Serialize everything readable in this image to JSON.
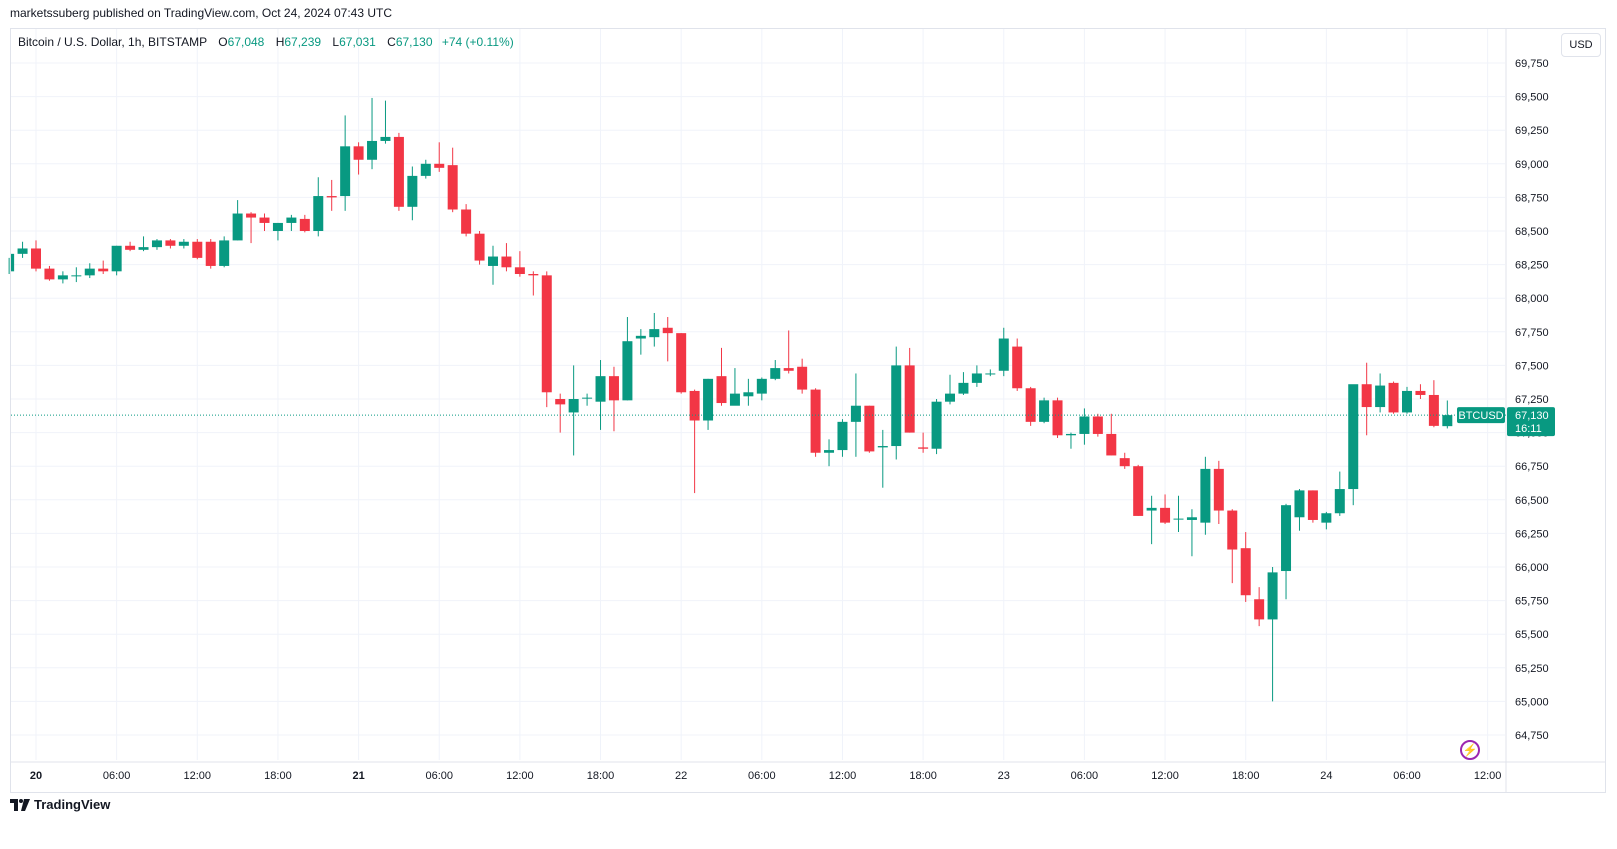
{
  "publisher": "marketssuberg published on TradingView.com, Oct 24, 2024 07:43 UTC",
  "legend": {
    "symbol": "Bitcoin / U.S. Dollar, 1h, BITSTAMP",
    "o_label": "O",
    "o": "67,048",
    "h_label": "H",
    "h": "67,239",
    "l_label": "L",
    "l": "67,031",
    "c_label": "C",
    "c": "67,130",
    "change": "+74 (+0.11%)"
  },
  "currency_button": "USD",
  "price_tag": {
    "symbol": "BTCUSD",
    "price": "67,130",
    "countdown": "16:11"
  },
  "footer_brand": "TradingView",
  "icons": {
    "logo": "tradingview-logo-icon",
    "alert": "lightning-icon"
  },
  "colors": {
    "up": "#089981",
    "down": "#f23645",
    "tag": "#089981"
  },
  "chart_data": {
    "type": "candlestick",
    "title": "Bitcoin / U.S. Dollar, 1h, BITSTAMP",
    "last_price": 67130,
    "ylim": [
      64600,
      69900
    ],
    "y_ticks": [
      "69,750",
      "69,500",
      "69,250",
      "69,000",
      "68,750",
      "68,500",
      "68,250",
      "68,000",
      "67,750",
      "67,500",
      "67,250",
      "67,000",
      "66,750",
      "66,500",
      "66,250",
      "66,000",
      "65,750",
      "65,500",
      "65,250",
      "65,000",
      "64,750"
    ],
    "y_tick_values": [
      69750,
      69500,
      69250,
      69000,
      68750,
      68500,
      68250,
      68000,
      67750,
      67500,
      67250,
      67000,
      66750,
      66500,
      66250,
      66000,
      65750,
      65500,
      65250,
      65000,
      64750
    ],
    "x_ticks": [
      "20",
      "06:00",
      "12:00",
      "18:00",
      "21",
      "06:00",
      "12:00",
      "18:00",
      "22",
      "06:00",
      "12:00",
      "18:00",
      "23",
      "06:00",
      "12:00",
      "18:00",
      "24",
      "06:00",
      "12:00"
    ],
    "x_tick_hours": [
      0,
      6,
      12,
      18,
      24,
      30,
      36,
      42,
      48,
      54,
      60,
      66,
      72,
      78,
      84,
      90,
      96,
      102,
      108
    ],
    "x_tick_bold": [
      true,
      false,
      false,
      false,
      true,
      false,
      false,
      false,
      false,
      false,
      false,
      false,
      false,
      false,
      false,
      false,
      false,
      false,
      false
    ],
    "candles": [
      {
        "t": -2,
        "o": 68200,
        "h": 68300,
        "l": 68180,
        "c": 68330
      },
      {
        "t": -1,
        "o": 68330,
        "h": 68420,
        "l": 68300,
        "c": 68370
      },
      {
        "t": 0,
        "o": 68370,
        "h": 68430,
        "l": 68200,
        "c": 68220
      },
      {
        "t": 1,
        "o": 68220,
        "h": 68240,
        "l": 68130,
        "c": 68140
      },
      {
        "t": 2,
        "o": 68140,
        "h": 68200,
        "l": 68110,
        "c": 68170
      },
      {
        "t": 3,
        "o": 68170,
        "h": 68230,
        "l": 68120,
        "c": 68170
      },
      {
        "t": 4,
        "o": 68170,
        "h": 68260,
        "l": 68150,
        "c": 68220
      },
      {
        "t": 5,
        "o": 68220,
        "h": 68280,
        "l": 68180,
        "c": 68200
      },
      {
        "t": 6,
        "o": 68200,
        "h": 68390,
        "l": 68170,
        "c": 68390
      },
      {
        "t": 7,
        "o": 68390,
        "h": 68420,
        "l": 68350,
        "c": 68360
      },
      {
        "t": 8,
        "o": 68360,
        "h": 68460,
        "l": 68350,
        "c": 68380
      },
      {
        "t": 9,
        "o": 68380,
        "h": 68440,
        "l": 68360,
        "c": 68430
      },
      {
        "t": 10,
        "o": 68430,
        "h": 68440,
        "l": 68370,
        "c": 68390
      },
      {
        "t": 11,
        "o": 68390,
        "h": 68440,
        "l": 68370,
        "c": 68420
      },
      {
        "t": 12,
        "o": 68420,
        "h": 68440,
        "l": 68290,
        "c": 68300
      },
      {
        "t": 13,
        "o": 68420,
        "h": 68440,
        "l": 68220,
        "c": 68240
      },
      {
        "t": 14,
        "o": 68240,
        "h": 68460,
        "l": 68230,
        "c": 68430
      },
      {
        "t": 15,
        "o": 68430,
        "h": 68730,
        "l": 68430,
        "c": 68630
      },
      {
        "t": 16,
        "o": 68630,
        "h": 68640,
        "l": 68410,
        "c": 68600
      },
      {
        "t": 17,
        "o": 68600,
        "h": 68630,
        "l": 68500,
        "c": 68560
      },
      {
        "t": 18,
        "o": 68500,
        "h": 68560,
        "l": 68430,
        "c": 68560
      },
      {
        "t": 19,
        "o": 68560,
        "h": 68620,
        "l": 68500,
        "c": 68600
      },
      {
        "t": 20,
        "o": 68590,
        "h": 68620,
        "l": 68490,
        "c": 68500
      },
      {
        "t": 21,
        "o": 68500,
        "h": 68900,
        "l": 68460,
        "c": 68760
      },
      {
        "t": 22,
        "o": 68760,
        "h": 68880,
        "l": 68650,
        "c": 68750
      },
      {
        "t": 23,
        "o": 68760,
        "h": 69360,
        "l": 68650,
        "c": 69130
      },
      {
        "t": 24,
        "o": 69130,
        "h": 69160,
        "l": 68920,
        "c": 69030
      },
      {
        "t": 25,
        "o": 69030,
        "h": 69490,
        "l": 68960,
        "c": 69170
      },
      {
        "t": 26,
        "o": 69170,
        "h": 69470,
        "l": 69150,
        "c": 69200
      },
      {
        "t": 27,
        "o": 69200,
        "h": 69230,
        "l": 68650,
        "c": 68680
      },
      {
        "t": 28,
        "o": 68680,
        "h": 68980,
        "l": 68580,
        "c": 68910
      },
      {
        "t": 29,
        "o": 68910,
        "h": 69030,
        "l": 68890,
        "c": 69000
      },
      {
        "t": 30,
        "o": 69000,
        "h": 69160,
        "l": 68940,
        "c": 68970
      },
      {
        "t": 31,
        "o": 68990,
        "h": 69120,
        "l": 68640,
        "c": 68660
      },
      {
        "t": 32,
        "o": 68660,
        "h": 68700,
        "l": 68460,
        "c": 68480
      },
      {
        "t": 33,
        "o": 68480,
        "h": 68500,
        "l": 68250,
        "c": 68280
      },
      {
        "t": 34,
        "o": 68240,
        "h": 68390,
        "l": 68100,
        "c": 68310
      },
      {
        "t": 35,
        "o": 68310,
        "h": 68410,
        "l": 68200,
        "c": 68230
      },
      {
        "t": 36,
        "o": 68230,
        "h": 68350,
        "l": 68160,
        "c": 68180
      },
      {
        "t": 37,
        "o": 68180,
        "h": 68200,
        "l": 68020,
        "c": 68170
      },
      {
        "t": 38,
        "o": 68170,
        "h": 68200,
        "l": 67190,
        "c": 67300
      },
      {
        "t": 39,
        "o": 67250,
        "h": 67290,
        "l": 67000,
        "c": 67210
      },
      {
        "t": 40,
        "o": 67150,
        "h": 67500,
        "l": 66830,
        "c": 67250
      },
      {
        "t": 41,
        "o": 67260,
        "h": 67290,
        "l": 67200,
        "c": 67260
      },
      {
        "t": 42,
        "o": 67230,
        "h": 67540,
        "l": 67020,
        "c": 67420
      },
      {
        "t": 43,
        "o": 67420,
        "h": 67490,
        "l": 67010,
        "c": 67240
      },
      {
        "t": 44,
        "o": 67240,
        "h": 67860,
        "l": 67240,
        "c": 67680
      },
      {
        "t": 45,
        "o": 67700,
        "h": 67770,
        "l": 67580,
        "c": 67720
      },
      {
        "t": 46,
        "o": 67710,
        "h": 67890,
        "l": 67640,
        "c": 67770
      },
      {
        "t": 47,
        "o": 67780,
        "h": 67860,
        "l": 67530,
        "c": 67740
      },
      {
        "t": 48,
        "o": 67740,
        "h": 67740,
        "l": 67290,
        "c": 67300
      },
      {
        "t": 49,
        "o": 67310,
        "h": 67320,
        "l": 66550,
        "c": 67090
      },
      {
        "t": 50,
        "o": 67090,
        "h": 67400,
        "l": 67020,
        "c": 67400
      },
      {
        "t": 51,
        "o": 67420,
        "h": 67630,
        "l": 67200,
        "c": 67220
      },
      {
        "t": 52,
        "o": 67200,
        "h": 67480,
        "l": 67250,
        "c": 67290
      },
      {
        "t": 53,
        "o": 67270,
        "h": 67400,
        "l": 67200,
        "c": 67300
      },
      {
        "t": 54,
        "o": 67290,
        "h": 67410,
        "l": 67240,
        "c": 67400
      },
      {
        "t": 55,
        "o": 67400,
        "h": 67540,
        "l": 67390,
        "c": 67480
      },
      {
        "t": 56,
        "o": 67480,
        "h": 67760,
        "l": 67440,
        "c": 67460
      },
      {
        "t": 57,
        "o": 67490,
        "h": 67550,
        "l": 67290,
        "c": 67320
      },
      {
        "t": 58,
        "o": 67320,
        "h": 67330,
        "l": 66820,
        "c": 66850
      },
      {
        "t": 59,
        "o": 66850,
        "h": 66950,
        "l": 66750,
        "c": 66870
      },
      {
        "t": 60,
        "o": 66870,
        "h": 67100,
        "l": 66820,
        "c": 67080
      },
      {
        "t": 61,
        "o": 67080,
        "h": 67440,
        "l": 66820,
        "c": 67200
      },
      {
        "t": 62,
        "o": 67200,
        "h": 67200,
        "l": 66850,
        "c": 66860
      },
      {
        "t": 63,
        "o": 66890,
        "h": 67020,
        "l": 66590,
        "c": 66900
      },
      {
        "t": 64,
        "o": 66900,
        "h": 67640,
        "l": 66800,
        "c": 67500
      },
      {
        "t": 65,
        "o": 67500,
        "h": 67630,
        "l": 67000,
        "c": 67000
      },
      {
        "t": 66,
        "o": 66890,
        "h": 67000,
        "l": 66850,
        "c": 66880
      },
      {
        "t": 67,
        "o": 66880,
        "h": 67250,
        "l": 66840,
        "c": 67230
      },
      {
        "t": 68,
        "o": 67230,
        "h": 67430,
        "l": 67210,
        "c": 67290
      },
      {
        "t": 69,
        "o": 67290,
        "h": 67450,
        "l": 67280,
        "c": 67370
      },
      {
        "t": 70,
        "o": 67370,
        "h": 67500,
        "l": 67340,
        "c": 67440
      },
      {
        "t": 71,
        "o": 67440,
        "h": 67470,
        "l": 67420,
        "c": 67440
      },
      {
        "t": 72,
        "o": 67460,
        "h": 67780,
        "l": 67420,
        "c": 67700
      },
      {
        "t": 73,
        "o": 67640,
        "h": 67700,
        "l": 67310,
        "c": 67330
      },
      {
        "t": 74,
        "o": 67330,
        "h": 67340,
        "l": 67050,
        "c": 67080
      },
      {
        "t": 75,
        "o": 67080,
        "h": 67260,
        "l": 67070,
        "c": 67240
      },
      {
        "t": 76,
        "o": 67240,
        "h": 67260,
        "l": 66960,
        "c": 66980
      },
      {
        "t": 77,
        "o": 66980,
        "h": 67000,
        "l": 66880,
        "c": 66990
      },
      {
        "t": 78,
        "o": 66990,
        "h": 67180,
        "l": 66910,
        "c": 67120
      },
      {
        "t": 79,
        "o": 67120,
        "h": 67140,
        "l": 66970,
        "c": 66990
      },
      {
        "t": 80,
        "o": 66990,
        "h": 67140,
        "l": 66830,
        "c": 66830
      },
      {
        "t": 81,
        "o": 66810,
        "h": 66850,
        "l": 66730,
        "c": 66750
      },
      {
        "t": 82,
        "o": 66750,
        "h": 66760,
        "l": 66380,
        "c": 66380
      },
      {
        "t": 83,
        "o": 66420,
        "h": 66530,
        "l": 66170,
        "c": 66440
      },
      {
        "t": 84,
        "o": 66440,
        "h": 66540,
        "l": 66320,
        "c": 66330
      },
      {
        "t": 85,
        "o": 66360,
        "h": 66530,
        "l": 66260,
        "c": 66360
      },
      {
        "t": 86,
        "o": 66350,
        "h": 66430,
        "l": 66080,
        "c": 66370
      },
      {
        "t": 87,
        "o": 66330,
        "h": 66820,
        "l": 66240,
        "c": 66730
      },
      {
        "t": 88,
        "o": 66730,
        "h": 66790,
        "l": 66320,
        "c": 66420
      },
      {
        "t": 89,
        "o": 66420,
        "h": 66430,
        "l": 65880,
        "c": 66130
      },
      {
        "t": 90,
        "o": 66140,
        "h": 66260,
        "l": 65740,
        "c": 65790
      },
      {
        "t": 91,
        "o": 65760,
        "h": 65850,
        "l": 65560,
        "c": 65610
      },
      {
        "t": 92,
        "o": 65610,
        "h": 66000,
        "l": 65000,
        "c": 65960
      },
      {
        "t": 93,
        "o": 65970,
        "h": 66470,
        "l": 65760,
        "c": 66460
      },
      {
        "t": 94,
        "o": 66370,
        "h": 66580,
        "l": 66270,
        "c": 66570
      },
      {
        "t": 95,
        "o": 66570,
        "h": 66570,
        "l": 66330,
        "c": 66350
      },
      {
        "t": 96,
        "o": 66330,
        "h": 66410,
        "l": 66280,
        "c": 66400
      },
      {
        "t": 97,
        "o": 66400,
        "h": 66710,
        "l": 66380,
        "c": 66580
      },
      {
        "t": 98,
        "o": 66580,
        "h": 67350,
        "l": 66460,
        "c": 67360
      },
      {
        "t": 99,
        "o": 67360,
        "h": 67520,
        "l": 66980,
        "c": 67190
      },
      {
        "t": 100,
        "o": 67190,
        "h": 67440,
        "l": 67150,
        "c": 67350
      },
      {
        "t": 101,
        "o": 67370,
        "h": 67380,
        "l": 67140,
        "c": 67150
      },
      {
        "t": 102,
        "o": 67150,
        "h": 67340,
        "l": 67140,
        "c": 67310
      },
      {
        "t": 103,
        "o": 67310,
        "h": 67360,
        "l": 67250,
        "c": 67280
      },
      {
        "t": 104,
        "o": 67280,
        "h": 67390,
        "l": 67040,
        "c": 67050
      },
      {
        "t": 105,
        "o": 67048,
        "h": 67239,
        "l": 67031,
        "c": 67130
      }
    ]
  }
}
